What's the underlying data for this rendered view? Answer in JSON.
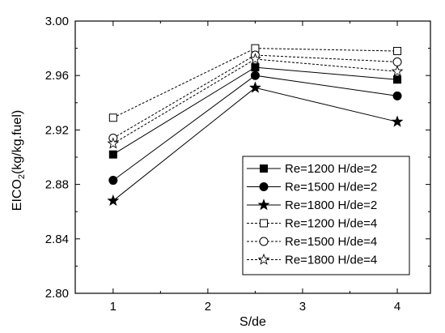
{
  "chart_data": {
    "type": "line",
    "xlabel": "S/de",
    "ylabel": {
      "main": "EICO",
      "sub": "2",
      "rest": "(kg/kg.fuel)"
    },
    "xlim": [
      0.6,
      4.35
    ],
    "ylim": [
      2.8,
      3.0
    ],
    "xticks": [
      1,
      2,
      3,
      4
    ],
    "yticks": [
      2.8,
      2.84,
      2.88,
      2.92,
      2.96,
      3.0
    ],
    "ytick_labels": [
      "2.80",
      "2.84",
      "2.88",
      "2.92",
      "2.96",
      "3.00"
    ],
    "grid": false,
    "legend_position": "lower-right",
    "x": [
      1,
      2.5,
      4
    ],
    "series": [
      {
        "name": "Re=1200 H/de=2",
        "values": [
          2.902,
          2.966,
          2.957
        ],
        "marker": "square",
        "filled": true,
        "dashed": false
      },
      {
        "name": "Re=1500 H/de=2",
        "values": [
          2.883,
          2.96,
          2.945
        ],
        "marker": "circle",
        "filled": true,
        "dashed": false
      },
      {
        "name": "Re=1800 H/de=2",
        "values": [
          2.868,
          2.951,
          2.926
        ],
        "marker": "star",
        "filled": true,
        "dashed": false
      },
      {
        "name": "Re=1200 H/de=4",
        "values": [
          2.929,
          2.98,
          2.978
        ],
        "marker": "square",
        "filled": false,
        "dashed": true
      },
      {
        "name": "Re=1500 H/de=4",
        "values": [
          2.914,
          2.975,
          2.97
        ],
        "marker": "circle",
        "filled": false,
        "dashed": true
      },
      {
        "name": "Re=1800 H/de=4",
        "values": [
          2.91,
          2.972,
          2.963
        ],
        "marker": "star",
        "filled": false,
        "dashed": true
      }
    ]
  }
}
